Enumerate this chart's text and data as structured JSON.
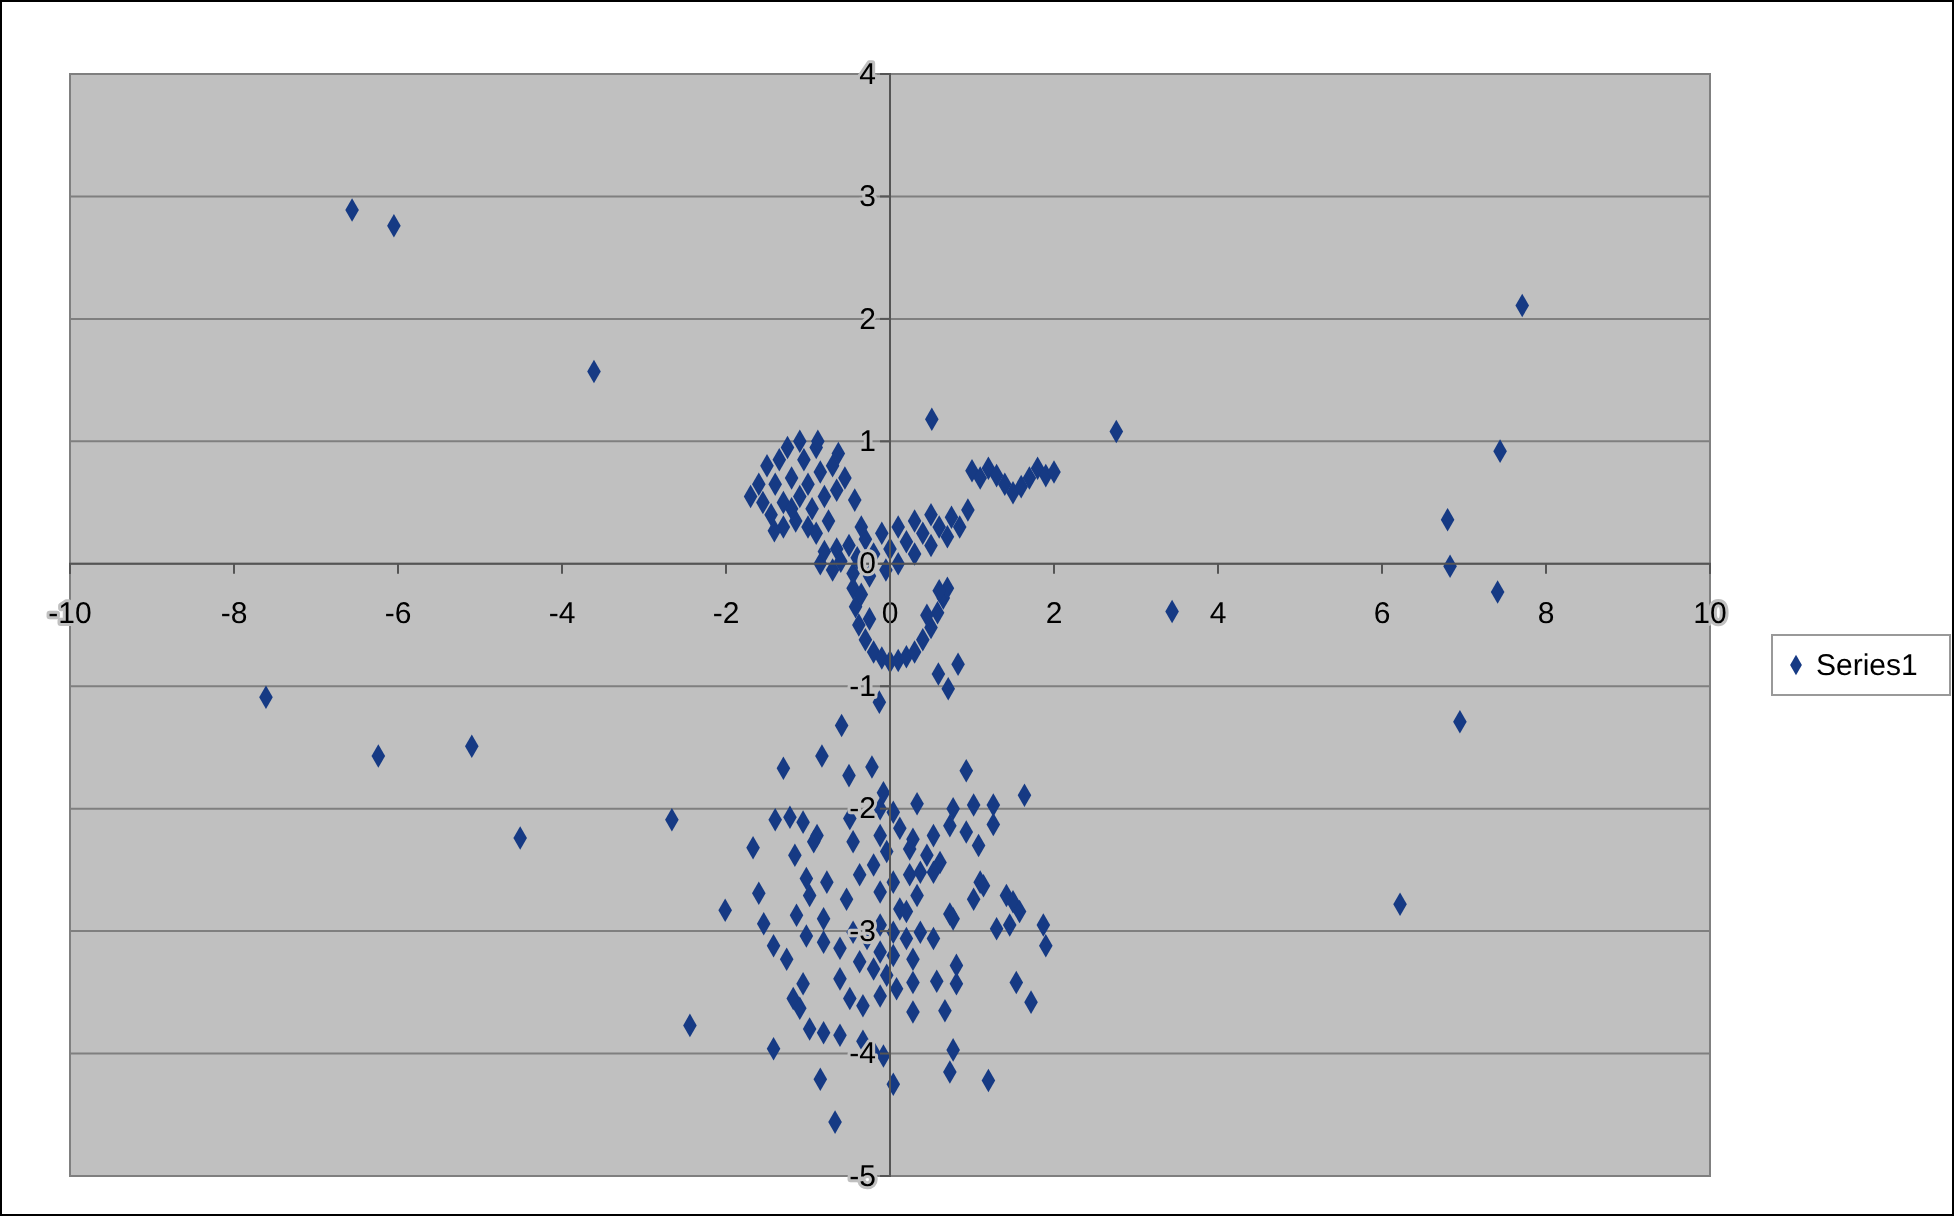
{
  "chart_data": {
    "type": "scatter",
    "xlim": [
      -10,
      10
    ],
    "ylim": [
      -5,
      4
    ],
    "xticks": [
      -10,
      -8,
      -6,
      -4,
      -2,
      0,
      2,
      4,
      6,
      8,
      10
    ],
    "yticks": [
      -5,
      -4,
      -3,
      -2,
      -1,
      0,
      1,
      2,
      3,
      4
    ],
    "grid": "y",
    "legend": "right",
    "marker": "diamond",
    "series": [
      {
        "name": "Series1",
        "color": "#163a84",
        "x": [
          -6.56,
          -6.05,
          -3.61,
          -7.61,
          -6.24,
          -5.1,
          -4.51,
          -2.66,
          -2.44,
          0.51,
          2.76,
          3.44,
          7.71,
          7.44,
          6.8,
          6.83,
          7.41,
          6.95,
          6.22,
          -1.6,
          -1.55,
          -1.5,
          -1.45,
          -1.4,
          -1.35,
          -1.3,
          -1.25,
          -1.2,
          -1.15,
          -1.1,
          -1.05,
          -1.0,
          -0.95,
          -0.9,
          -0.85,
          -0.8,
          -0.75,
          -0.7,
          -0.65,
          -1.3,
          -1.0,
          -1.1,
          -0.55,
          -1.7,
          -1.2,
          -0.9,
          -1.41,
          -0.88,
          -0.63,
          -0.43,
          -0.85,
          -0.8,
          -0.7,
          -0.65,
          -0.6,
          -0.5,
          -0.45,
          -0.4,
          -0.3,
          -0.25,
          -0.2,
          -0.1,
          -0.05,
          0.0,
          0.1,
          0.1,
          0.2,
          0.3,
          0.3,
          0.4,
          0.5,
          0.5,
          0.6,
          0.7,
          0.75,
          0.85,
          0.95,
          -0.35,
          1.0,
          1.1,
          1.2,
          1.3,
          1.4,
          1.5,
          1.6,
          1.7,
          1.8,
          1.9,
          2.0,
          -0.45,
          -0.42,
          -0.38,
          -0.3,
          -0.2,
          -0.1,
          0.0,
          0.1,
          0.2,
          0.3,
          0.4,
          0.5,
          0.58,
          0.65,
          0.7,
          -0.35,
          0.6,
          -0.25,
          0.45,
          0.83,
          0.59,
          0.71,
          -0.13,
          -0.59,
          -1.3,
          -0.83,
          -0.5,
          -0.22,
          0.93,
          1.64,
          -1.4,
          -1.22,
          -1.06,
          -0.89,
          -1.67,
          -1.16,
          -0.93,
          -0.49,
          -0.12,
          -0.08,
          0.04,
          0.33,
          0.77,
          1.02,
          1.26,
          1.26,
          0.73,
          0.93,
          1.08,
          0.53,
          0.28,
          0.24,
          0.45,
          0.61,
          -0.45,
          -0.12,
          -0.04,
          0.12,
          -0.37,
          -0.2,
          -0.77,
          -1.02,
          -0.98,
          -1.6,
          -2.01,
          -1.54,
          -1.14,
          -0.81,
          -0.53,
          -0.12,
          0.04,
          0.24,
          0.37,
          0.53,
          0.33,
          0.12,
          0.2,
          0.73,
          0.77,
          1.02,
          1.1,
          1.14,
          1.42,
          1.5,
          1.58,
          1.46,
          1.3,
          1.87,
          1.9,
          -1.02,
          -0.81,
          -0.61,
          -0.45,
          -0.28,
          -0.12,
          0.04,
          0.2,
          0.37,
          0.53,
          -0.12,
          0.04,
          0.28,
          -1.42,
          -1.26,
          -0.37,
          -0.2,
          -0.04,
          -0.61,
          -1.06,
          0.28,
          0.57,
          0.81,
          0.81,
          1.54,
          1.72,
          -1.18,
          -1.1,
          -0.49,
          -0.33,
          -0.12,
          0.08,
          0.28,
          0.67,
          -0.98,
          -0.81,
          -0.61,
          -0.33,
          -0.2,
          -0.08,
          -1.42,
          0.77,
          -0.85,
          0.04,
          0.73,
          1.2,
          -0.67
        ],
        "values": [
          2.89,
          2.76,
          1.57,
          -1.09,
          -1.57,
          -1.49,
          -2.24,
          -2.09,
          -3.77,
          1.18,
          1.08,
          -0.39,
          2.11,
          0.92,
          0.36,
          -0.02,
          -0.23,
          -1.29,
          -2.78,
          0.65,
          0.5,
          0.8,
          0.4,
          0.65,
          0.85,
          0.5,
          0.95,
          0.7,
          0.35,
          0.55,
          0.85,
          0.65,
          0.45,
          0.95,
          0.75,
          0.55,
          0.35,
          0.8,
          0.6,
          0.3,
          0.3,
          1.0,
          0.7,
          0.55,
          0.45,
          0.25,
          0.27,
          1.0,
          0.9,
          0.52,
          0.0,
          0.1,
          -0.05,
          0.12,
          0.02,
          0.15,
          -0.08,
          0.05,
          0.2,
          -0.1,
          0.08,
          0.25,
          -0.05,
          0.12,
          0.3,
          0.0,
          0.18,
          0.35,
          0.08,
          0.25,
          0.4,
          0.15,
          0.3,
          0.22,
          0.38,
          0.3,
          0.44,
          0.3,
          0.76,
          0.7,
          0.78,
          0.72,
          0.65,
          0.58,
          0.63,
          0.7,
          0.78,
          0.72,
          0.75,
          -0.2,
          -0.35,
          -0.5,
          -0.62,
          -0.72,
          -0.77,
          -0.8,
          -0.79,
          -0.76,
          -0.72,
          -0.62,
          -0.52,
          -0.4,
          -0.28,
          -0.2,
          -0.25,
          -0.22,
          -0.45,
          -0.42,
          -0.82,
          -0.9,
          -1.02,
          -1.13,
          -1.32,
          -1.67,
          -1.57,
          -1.73,
          -1.66,
          -1.69,
          -1.89,
          -2.09,
          -2.07,
          -2.11,
          -2.22,
          -2.32,
          -2.38,
          -2.27,
          -2.08,
          -2.0,
          -1.87,
          -2.03,
          -1.96,
          -2.0,
          -1.97,
          -1.97,
          -2.13,
          -2.14,
          -2.19,
          -2.3,
          -2.22,
          -2.25,
          -2.33,
          -2.38,
          -2.44,
          -2.27,
          -2.22,
          -2.35,
          -2.16,
          -2.54,
          -2.46,
          -2.6,
          -2.57,
          -2.71,
          -2.69,
          -2.83,
          -2.94,
          -2.87,
          -2.9,
          -2.74,
          -2.68,
          -2.6,
          -2.54,
          -2.52,
          -2.52,
          -2.71,
          -2.82,
          -2.84,
          -2.86,
          -2.9,
          -2.74,
          -2.6,
          -2.63,
          -2.71,
          -2.76,
          -2.84,
          -2.95,
          -2.98,
          -2.95,
          -3.12,
          -3.04,
          -3.09,
          -3.14,
          -3.01,
          -3.06,
          -2.95,
          -3.01,
          -3.06,
          -3.01,
          -3.06,
          -3.17,
          -3.2,
          -3.23,
          -3.12,
          -3.23,
          -3.25,
          -3.31,
          -3.36,
          -3.39,
          -3.43,
          -3.42,
          -3.41,
          -3.43,
          -3.28,
          -3.42,
          -3.58,
          -3.55,
          -3.63,
          -3.55,
          -3.61,
          -3.53,
          -3.47,
          -3.66,
          -3.65,
          -3.8,
          -3.83,
          -3.85,
          -3.9,
          -3.99,
          -4.02,
          -3.96,
          -3.97,
          -4.21,
          -4.25,
          -4.15,
          -4.22,
          -4.56
        ]
      }
    ]
  }
}
